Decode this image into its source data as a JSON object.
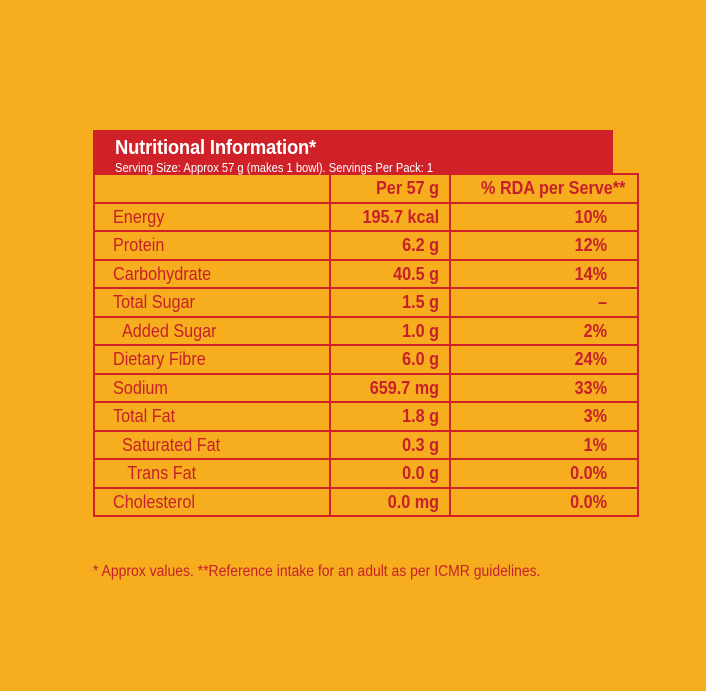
{
  "panel": {
    "title": "Nutritional Information*",
    "subtitle": "Serving Size: Approx 57 g (makes 1 bowl). Servings Per Pack: 1"
  },
  "table": {
    "headers": [
      "",
      "Per 57 g",
      "% RDA per Serve**"
    ],
    "rows": [
      {
        "name": "Energy",
        "per": "195.7 kcal",
        "rda": "10%"
      },
      {
        "name": "Protein",
        "per": "6.2 g",
        "rda": "12%"
      },
      {
        "name": "Carbohydrate",
        "per": "40.5 g",
        "rda": "14%"
      },
      {
        "name": "Total Sugar",
        "per": "1.5 g",
        "rda": "–"
      },
      {
        "name": "Added Sugar",
        "per": "1.0 g",
        "rda": "2%"
      },
      {
        "name": "Dietary Fibre",
        "per": "6.0 g",
        "rda": "24%"
      },
      {
        "name": "Sodium",
        "per": "659.7 mg",
        "rda": "33%"
      },
      {
        "name": "Total Fat",
        "per": "1.8 g",
        "rda": "3%"
      },
      {
        "name": "Saturated Fat",
        "per": "0.3 g",
        "rda": "1%"
      },
      {
        "name": "Trans Fat",
        "per": "0.0 g",
        "rda": "0.0%"
      },
      {
        "name": "Cholesterol",
        "per": "0.0 mg",
        "rda": "0.0%"
      }
    ]
  },
  "footnote": "* Approx values. **Reference intake for an adult as per ICMR guidelines.",
  "colors": {
    "background": "#f6ad1e",
    "accent_red": "#cf2127",
    "text_red": "#c8202a",
    "header_text": "#ffffff"
  }
}
